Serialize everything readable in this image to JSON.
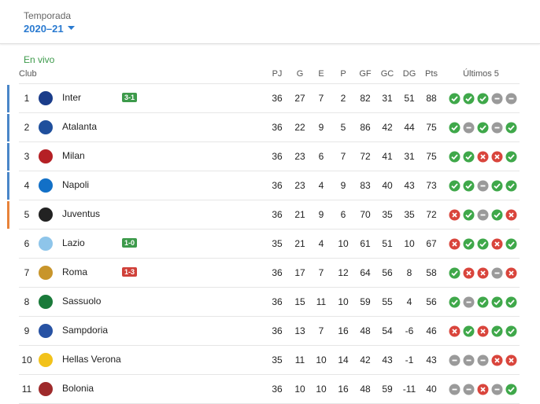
{
  "header": {
    "season_label": "Temporada",
    "season": "2020–21"
  },
  "live_label": "En vivo",
  "table": {
    "columns": [
      "Club",
      "PJ",
      "G",
      "E",
      "P",
      "GF",
      "GC",
      "DG",
      "Pts",
      "Últimos 5"
    ],
    "rows": [
      {
        "rank": 1,
        "club": "Inter",
        "live_score": "3-1",
        "live_color": "#3d9a4b",
        "zone_color": "#4a86c8",
        "stats": [
          36,
          27,
          7,
          2,
          82,
          31,
          51,
          88
        ],
        "form": [
          "W",
          "W",
          "W",
          "D",
          "D"
        ]
      },
      {
        "rank": 2,
        "club": "Atalanta",
        "zone_color": "#4a86c8",
        "stats": [
          36,
          22,
          9,
          5,
          86,
          42,
          44,
          75
        ],
        "form": [
          "W",
          "D",
          "W",
          "D",
          "W"
        ]
      },
      {
        "rank": 3,
        "club": "Milan",
        "zone_color": "#4a86c8",
        "stats": [
          36,
          23,
          6,
          7,
          72,
          41,
          31,
          75
        ],
        "form": [
          "W",
          "W",
          "L",
          "L",
          "W"
        ]
      },
      {
        "rank": 4,
        "club": "Napoli",
        "zone_color": "#4a86c8",
        "stats": [
          36,
          23,
          4,
          9,
          83,
          40,
          43,
          73
        ],
        "form": [
          "W",
          "W",
          "D",
          "W",
          "W"
        ]
      },
      {
        "rank": 5,
        "club": "Juventus",
        "zone_color": "#e8833a",
        "stats": [
          36,
          21,
          9,
          6,
          70,
          35,
          35,
          72
        ],
        "form": [
          "L",
          "W",
          "D",
          "W",
          "L"
        ]
      },
      {
        "rank": 6,
        "club": "Lazio",
        "live_score": "1-0",
        "live_color": "#3d9a4b",
        "stats": [
          35,
          21,
          4,
          10,
          61,
          51,
          10,
          67
        ],
        "form": [
          "L",
          "W",
          "W",
          "L",
          "W"
        ]
      },
      {
        "rank": 7,
        "club": "Roma",
        "live_score": "1-3",
        "live_color": "#d0413a",
        "stats": [
          36,
          17,
          7,
          12,
          64,
          56,
          8,
          58
        ],
        "form": [
          "W",
          "L",
          "L",
          "D",
          "L"
        ]
      },
      {
        "rank": 8,
        "club": "Sassuolo",
        "stats": [
          36,
          15,
          11,
          10,
          59,
          55,
          4,
          56
        ],
        "form": [
          "W",
          "D",
          "W",
          "W",
          "W"
        ]
      },
      {
        "rank": 9,
        "club": "Sampdoria",
        "stats": [
          36,
          13,
          7,
          16,
          48,
          54,
          -6,
          46
        ],
        "form": [
          "L",
          "W",
          "L",
          "W",
          "W"
        ]
      },
      {
        "rank": 10,
        "club": "Hellas Verona",
        "stats": [
          35,
          11,
          10,
          14,
          42,
          43,
          -1,
          43
        ],
        "form": [
          "D",
          "D",
          "D",
          "L",
          "L"
        ]
      },
      {
        "rank": 11,
        "club": "Bolonia",
        "stats": [
          36,
          10,
          10,
          16,
          48,
          59,
          -11,
          40
        ],
        "form": [
          "D",
          "D",
          "L",
          "D",
          "W"
        ]
      }
    ]
  }
}
